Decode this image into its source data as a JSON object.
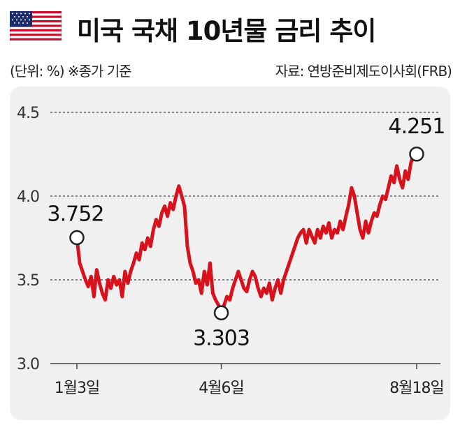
{
  "header": {
    "title": "미국 국채 10년물 금리 추이",
    "unit_note": "(단위: %) ※종가 기준",
    "source": "자료: 연방준비제도이사회(FRB)",
    "flag_icon": "us-flag-icon"
  },
  "colors": {
    "line": "#d7121c",
    "grid": "#444444",
    "panel": "#f0f0f0"
  },
  "chart_data": {
    "type": "line",
    "title": "미국 국채 10년물 금리 추이",
    "ylim": [
      3.0,
      4.5
    ],
    "yticks": [
      "3.0",
      "3.5",
      "4.0",
      "4.5"
    ],
    "xtick_labels": [
      "1월3일",
      "4월6일",
      "8월18일"
    ],
    "grid": true,
    "series": [
      {
        "values": [
          3.752,
          3.6,
          3.55,
          3.5,
          3.46,
          3.52,
          3.4,
          3.56,
          3.48,
          3.42,
          3.38,
          3.5,
          3.45,
          3.52,
          3.47,
          3.5,
          3.4,
          3.55,
          3.48,
          3.55,
          3.6,
          3.66,
          3.62,
          3.72,
          3.68,
          3.75,
          3.7,
          3.8,
          3.86,
          3.82,
          3.9,
          3.94,
          3.88,
          3.96,
          3.92,
          4.0,
          4.06,
          4.0,
          3.94,
          3.7,
          3.6,
          3.55,
          3.48,
          3.5,
          3.42,
          3.55,
          3.47,
          3.6,
          3.42,
          3.38,
          3.35,
          3.303,
          3.35,
          3.4,
          3.38,
          3.45,
          3.5,
          3.55,
          3.5,
          3.45,
          3.43,
          3.5,
          3.55,
          3.52,
          3.45,
          3.4,
          3.45,
          3.42,
          3.48,
          3.38,
          3.45,
          3.5,
          3.42,
          3.5,
          3.55,
          3.6,
          3.65,
          3.7,
          3.75,
          3.78,
          3.8,
          3.72,
          3.8,
          3.76,
          3.72,
          3.8,
          3.75,
          3.82,
          3.78,
          3.84,
          3.75,
          3.8,
          3.78,
          3.85,
          3.8,
          3.88,
          3.95,
          4.05,
          4.0,
          3.9,
          3.8,
          3.75,
          3.85,
          3.78,
          3.85,
          3.9,
          3.88,
          3.95,
          4.0,
          3.98,
          4.05,
          4.12,
          4.08,
          4.18,
          4.1,
          4.05,
          4.15,
          4.1,
          4.2,
          4.25,
          4.251
        ]
      }
    ],
    "annotations": [
      {
        "label": "3.752",
        "value": 3.752,
        "index": 0
      },
      {
        "label": "3.303",
        "value": 3.303,
        "index": 51
      },
      {
        "label": "4.251",
        "value": 4.251,
        "index": 120
      }
    ],
    "xtick_indices": [
      0,
      51,
      120
    ]
  }
}
